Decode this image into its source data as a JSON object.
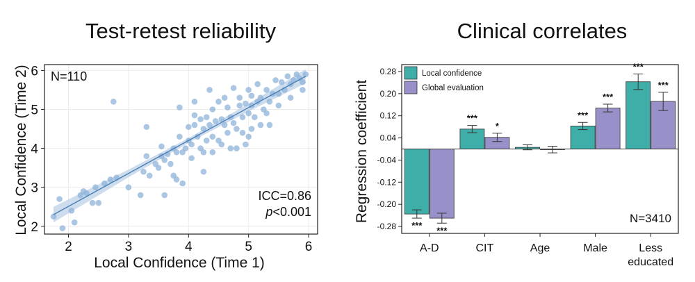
{
  "chart_data": [
    {
      "type": "scatter",
      "title": "Test-retest reliability",
      "xlabel": "Local Confidence (Time 1)",
      "ylabel": "Local Confidence (Time 2)",
      "xlim": [
        1.6,
        6.15
      ],
      "ylim": [
        1.8,
        6.15
      ],
      "xticks": [
        2,
        3,
        4,
        5,
        6
      ],
      "yticks": [
        2,
        3,
        4,
        5,
        6
      ],
      "n_label": "N=110",
      "icc_label": "ICC=0.86",
      "p_label_italic": "p",
      "p_label_rest": "<0.001",
      "fit": {
        "x": [
          1.75,
          5.95
        ],
        "y": [
          2.3,
          5.85
        ]
      },
      "band": {
        "x": [
          1.75,
          3.0,
          4.0,
          5.0,
          5.95
        ],
        "half_width": [
          0.2,
          0.1,
          0.06,
          0.1,
          0.18
        ]
      },
      "point_color": "#8fb3d9",
      "line_color": "#4a7fb5",
      "band_color": "#b8cfe6",
      "points": [
        [
          1.75,
          2.25
        ],
        [
          1.85,
          2.7
        ],
        [
          1.9,
          1.95
        ],
        [
          2.05,
          2.4
        ],
        [
          2.1,
          2.1
        ],
        [
          2.2,
          2.8
        ],
        [
          2.25,
          2.9
        ],
        [
          2.3,
          2.85
        ],
        [
          2.4,
          2.6
        ],
        [
          2.45,
          3.0
        ],
        [
          2.5,
          2.6
        ],
        [
          2.6,
          3.1
        ],
        [
          2.7,
          3.2
        ],
        [
          2.75,
          5.2
        ],
        [
          2.8,
          3.25
        ],
        [
          3.0,
          3.0
        ],
        [
          3.2,
          2.8
        ],
        [
          3.25,
          3.4
        ],
        [
          3.3,
          3.8
        ],
        [
          3.3,
          4.55
        ],
        [
          3.35,
          3.3
        ],
        [
          3.45,
          3.6
        ],
        [
          3.5,
          3.5
        ],
        [
          3.55,
          3.8
        ],
        [
          3.6,
          3.7
        ],
        [
          3.6,
          2.8
        ],
        [
          3.65,
          3.85
        ],
        [
          3.7,
          3.6
        ],
        [
          3.75,
          4.0
        ],
        [
          3.8,
          3.9
        ],
        [
          3.8,
          3.2
        ],
        [
          3.85,
          4.3
        ],
        [
          3.85,
          5.05
        ],
        [
          3.9,
          3.9
        ],
        [
          3.9,
          3.1
        ],
        [
          3.95,
          4.0
        ],
        [
          4.0,
          4.2
        ],
        [
          4.0,
          4.55
        ],
        [
          4.05,
          4.1
        ],
        [
          4.05,
          3.75
        ],
        [
          4.1,
          4.6
        ],
        [
          4.1,
          5.2
        ],
        [
          4.15,
          4.3
        ],
        [
          4.2,
          4.75
        ],
        [
          4.2,
          4.0
        ],
        [
          4.25,
          4.5
        ],
        [
          4.25,
          3.9
        ],
        [
          4.3,
          4.8
        ],
        [
          4.3,
          4.2
        ],
        [
          4.35,
          4.6
        ],
        [
          4.35,
          5.5
        ],
        [
          4.4,
          4.3
        ],
        [
          4.4,
          3.9
        ],
        [
          4.4,
          5.0
        ],
        [
          4.45,
          4.7
        ],
        [
          4.5,
          4.2
        ],
        [
          4.5,
          5.2
        ],
        [
          4.55,
          4.75
        ],
        [
          4.55,
          4.1
        ],
        [
          4.6,
          4.6
        ],
        [
          4.6,
          5.3
        ],
        [
          4.65,
          4.4
        ],
        [
          4.65,
          5.05
        ],
        [
          4.7,
          4.8
        ],
        [
          4.7,
          4.0
        ],
        [
          4.75,
          4.65
        ],
        [
          4.75,
          5.55
        ],
        [
          4.8,
          4.5
        ],
        [
          4.8,
          4.0
        ],
        [
          4.85,
          5.1
        ],
        [
          4.85,
          5.3
        ],
        [
          4.9,
          4.8
        ],
        [
          4.9,
          4.4
        ],
        [
          4.95,
          5.15
        ],
        [
          5.0,
          4.9
        ],
        [
          5.0,
          5.5
        ],
        [
          5.0,
          4.3
        ],
        [
          5.05,
          5.1
        ],
        [
          5.05,
          5.35
        ],
        [
          5.1,
          4.8
        ],
        [
          5.15,
          5.2
        ],
        [
          5.15,
          5.65
        ],
        [
          5.2,
          4.6
        ],
        [
          5.2,
          5.3
        ],
        [
          5.25,
          5.0
        ],
        [
          5.3,
          5.5
        ],
        [
          5.35,
          4.6
        ],
        [
          5.35,
          5.2
        ],
        [
          5.4,
          5.4
        ],
        [
          5.45,
          5.75
        ],
        [
          5.5,
          5.4
        ],
        [
          5.5,
          5.1
        ],
        [
          5.55,
          5.7
        ],
        [
          5.6,
          5.5
        ],
        [
          5.65,
          5.85
        ],
        [
          5.7,
          5.65
        ],
        [
          5.7,
          5.3
        ],
        [
          5.75,
          5.75
        ],
        [
          5.8,
          5.9
        ],
        [
          5.85,
          5.8
        ],
        [
          5.9,
          5.5
        ],
        [
          5.9,
          5.7
        ],
        [
          5.95,
          5.9
        ],
        [
          5.05,
          4.5
        ],
        [
          4.25,
          3.4
        ],
        [
          3.75,
          3.3
        ],
        [
          4.95,
          4.1
        ],
        [
          5.3,
          4.9
        ],
        [
          4.1,
          4.85
        ],
        [
          3.55,
          4.05
        ]
      ]
    },
    {
      "type": "bar",
      "title": "Clinical correlates",
      "ylabel": "Regression coefficient",
      "ylim": [
        -0.305,
        0.305
      ],
      "yticks": [
        0.28,
        0.2,
        0.12,
        0.04,
        -0.04,
        -0.12,
        -0.2,
        -0.28
      ],
      "ytick_labels": [
        "0.28",
        "0.20",
        "0.12",
        "0.04",
        "-0.04",
        "-0.12",
        "-0.20",
        "-0.28"
      ],
      "categories": [
        "A-D",
        "CIT",
        "Age",
        "Male",
        "Less"
      ],
      "category_sublabels": [
        "",
        "",
        "",
        "",
        "educated"
      ],
      "n_label": "N=3410",
      "legend_position": "top-left",
      "series": [
        {
          "name": "Local confidence",
          "color": "#3fada8",
          "values": [
            -0.235,
            0.072,
            0.006,
            0.083,
            0.243
          ],
          "errors": [
            0.015,
            0.013,
            0.009,
            0.013,
            0.028
          ],
          "significance": [
            "***",
            "***",
            "",
            "***",
            "***"
          ]
        },
        {
          "name": "Global evaluation",
          "color": "#9890c8",
          "values": [
            -0.25,
            0.042,
            -0.002,
            0.148,
            0.172
          ],
          "errors": [
            0.018,
            0.015,
            0.012,
            0.014,
            0.033
          ],
          "significance": [
            "***",
            "*",
            "",
            "***",
            "***"
          ]
        }
      ]
    }
  ]
}
